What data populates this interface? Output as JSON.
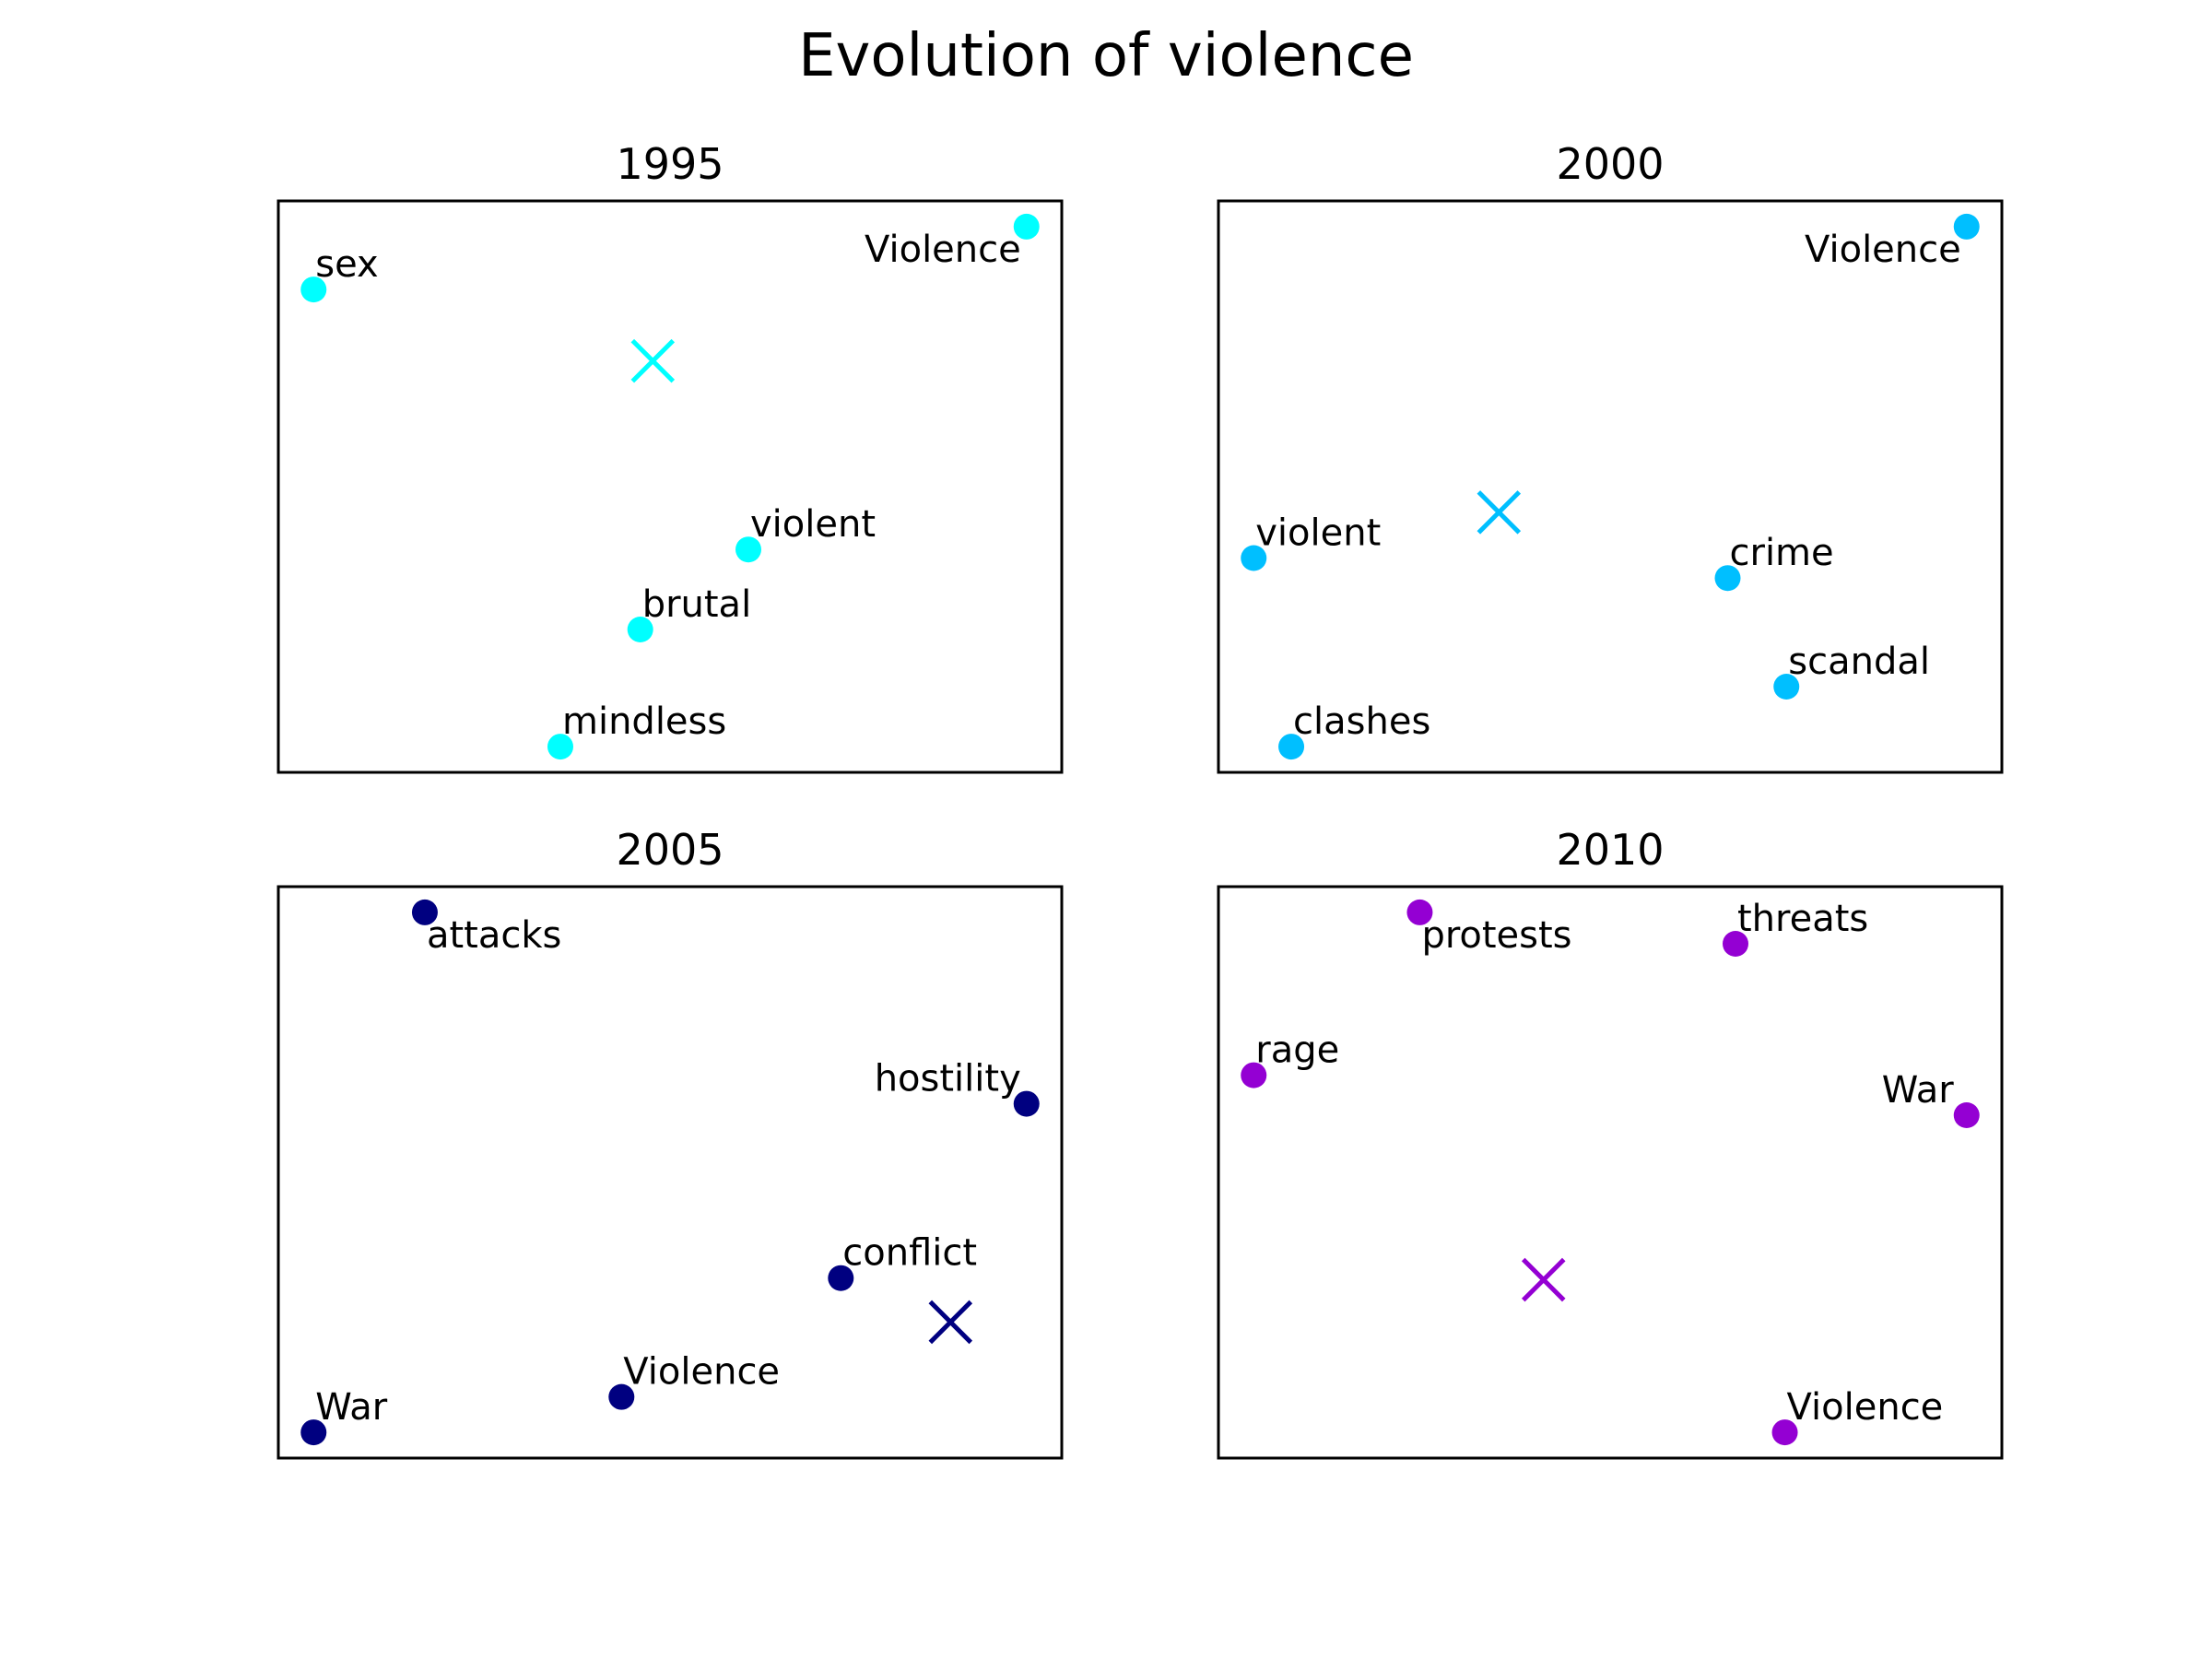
{
  "chart_data": {
    "type": "scatter",
    "title": "Evolution of violence",
    "panels": [
      {
        "title": "1995",
        "color": "#00ffff",
        "points": [
          {
            "label": "sex",
            "x": 0.045,
            "y": 0.845
          },
          {
            "label": "Violence",
            "x": 0.955,
            "y": 0.955
          },
          {
            "label": "violent",
            "x": 0.6,
            "y": 0.39
          },
          {
            "label": "brutal",
            "x": 0.462,
            "y": 0.25
          },
          {
            "label": "mindless",
            "x": 0.36,
            "y": 0.045
          }
        ],
        "centroid": {
          "x": 0.478,
          "y": 0.72
        }
      },
      {
        "title": "2000",
        "color": "#00bfff",
        "points": [
          {
            "label": "Violence",
            "x": 0.955,
            "y": 0.955
          },
          {
            "label": "violent",
            "x": 0.045,
            "y": 0.375
          },
          {
            "label": "crime",
            "x": 0.65,
            "y": 0.34
          },
          {
            "label": "scandal",
            "x": 0.725,
            "y": 0.15
          },
          {
            "label": "clashes",
            "x": 0.093,
            "y": 0.045
          }
        ],
        "centroid": {
          "x": 0.358,
          "y": 0.455
        }
      },
      {
        "title": "2005",
        "color": "#000080",
        "points": [
          {
            "label": "attacks",
            "x": 0.187,
            "y": 0.955
          },
          {
            "label": "hostility",
            "x": 0.955,
            "y": 0.62
          },
          {
            "label": "conflict",
            "x": 0.718,
            "y": 0.315
          },
          {
            "label": "Violence",
            "x": 0.438,
            "y": 0.107
          },
          {
            "label": "War",
            "x": 0.045,
            "y": 0.045
          }
        ],
        "centroid": {
          "x": 0.858,
          "y": 0.238
        }
      },
      {
        "title": "2010",
        "color": "#9400d3",
        "points": [
          {
            "label": "protests",
            "x": 0.257,
            "y": 0.955
          },
          {
            "label": "threats",
            "x": 0.66,
            "y": 0.9
          },
          {
            "label": "rage",
            "x": 0.045,
            "y": 0.67
          },
          {
            "label": "War",
            "x": 0.955,
            "y": 0.6
          },
          {
            "label": "Violence",
            "x": 0.723,
            "y": 0.045
          }
        ],
        "centroid": {
          "x": 0.415,
          "y": 0.312
        }
      }
    ]
  }
}
